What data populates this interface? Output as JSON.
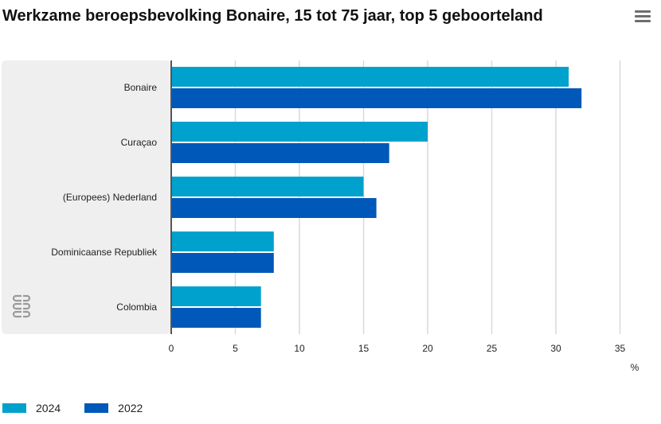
{
  "header": {
    "title": "Werkzame beroepsbevolking Bonaire, 15 tot 75 jaar, top 5 geboorteland"
  },
  "menu": {
    "icon": "hamburger-menu-icon"
  },
  "logo": {
    "icon": "cbs-logo",
    "text": "cbs"
  },
  "colors": {
    "series_2024": "#00A1CD",
    "series_2022": "#0058B8",
    "grid": "#d9d9d9",
    "panel": "#efefef"
  },
  "chart_data": {
    "type": "bar",
    "orientation": "horizontal",
    "title": "Werkzame beroepsbevolking Bonaire, 15 tot 75 jaar, top 5 geboorteland",
    "categories": [
      "Bonaire",
      "Curaçao",
      "(Europees) Nederland",
      "Dominicaanse Republiek",
      "Colombia"
    ],
    "series": [
      {
        "name": "2024",
        "values": [
          31,
          20,
          15,
          8,
          7
        ]
      },
      {
        "name": "2022",
        "values": [
          32,
          17,
          16,
          8,
          7
        ]
      }
    ],
    "xlim": [
      0,
      35
    ],
    "xticks": [
      "0",
      "5",
      "10",
      "15",
      "20",
      "25",
      "30",
      "35"
    ],
    "unit_label": "%",
    "grid": true,
    "legend_position": "bottom-left"
  }
}
